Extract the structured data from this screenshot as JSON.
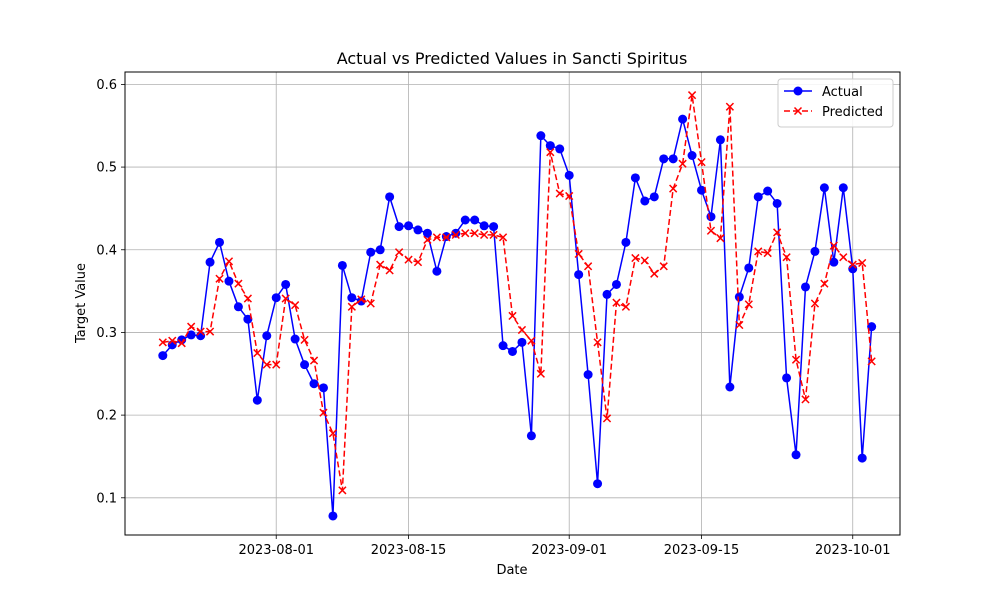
{
  "chart_data": {
    "type": "line",
    "title": "Actual vs Predicted Values in Sancti Spiritus",
    "xlabel": "Date",
    "ylabel": "Target Value",
    "x_start": "2023-07-20",
    "x_step_days": 1,
    "xlim": [
      "2023-07-16",
      "2023-10-06"
    ],
    "ylim": [
      0.055,
      0.615
    ],
    "xticks": [
      "2023-08-01",
      "2023-08-15",
      "2023-09-01",
      "2023-09-15",
      "2023-10-01"
    ],
    "yticks": [
      0.1,
      0.2,
      0.3,
      0.4,
      0.5,
      0.6
    ],
    "ytick_labels": [
      "0.1",
      "0.2",
      "0.3",
      "0.4",
      "0.5",
      "0.6"
    ],
    "grid": true,
    "legend_position": "top-right",
    "series": [
      {
        "name": "Actual",
        "color": "#0000ff",
        "marker": "circle",
        "line_style": "solid",
        "values": [
          0.272,
          0.285,
          0.291,
          0.297,
          0.296,
          0.385,
          0.409,
          0.362,
          0.331,
          0.316,
          0.218,
          0.296,
          0.342,
          0.358,
          0.292,
          0.261,
          0.238,
          0.233,
          0.078,
          0.381,
          0.342,
          0.338,
          0.397,
          0.4,
          0.464,
          0.428,
          0.429,
          0.424,
          0.42,
          0.374,
          0.416,
          0.42,
          0.436,
          0.436,
          0.429,
          0.428,
          0.284,
          0.277,
          0.288,
          0.175,
          0.538,
          0.526,
          0.522,
          0.49,
          0.37,
          0.249,
          0.117,
          0.346,
          0.358,
          0.409,
          0.487,
          0.459,
          0.464,
          0.51,
          0.51,
          0.558,
          0.514,
          0.472,
          0.44,
          0.533,
          0.234,
          0.343,
          0.378,
          0.464,
          0.471,
          0.456,
          0.245,
          0.152,
          0.355,
          0.398,
          0.475,
          0.385,
          0.475,
          0.377,
          0.148,
          0.307
        ]
      },
      {
        "name": "Predicted",
        "color": "#ff0000",
        "marker": "x",
        "line_style": "dashed",
        "values": [
          0.288,
          0.29,
          0.287,
          0.307,
          0.301,
          0.301,
          0.365,
          0.386,
          0.359,
          0.341,
          0.275,
          0.261,
          0.261,
          0.341,
          0.333,
          0.291,
          0.266,
          0.203,
          0.178,
          0.109,
          0.331,
          0.34,
          0.335,
          0.382,
          0.375,
          0.397,
          0.388,
          0.385,
          0.412,
          0.415,
          0.415,
          0.418,
          0.42,
          0.42,
          0.418,
          0.418,
          0.415,
          0.32,
          0.303,
          0.29,
          0.25,
          0.518,
          0.468,
          0.465,
          0.395,
          0.38,
          0.288,
          0.196,
          0.336,
          0.331,
          0.39,
          0.387,
          0.371,
          0.38,
          0.474,
          0.504,
          0.587,
          0.506,
          0.423,
          0.414,
          0.573,
          0.309,
          0.334,
          0.398,
          0.396,
          0.421,
          0.391,
          0.267,
          0.219,
          0.335,
          0.359,
          0.405,
          0.391,
          0.382,
          0.384,
          0.265
        ]
      }
    ]
  }
}
